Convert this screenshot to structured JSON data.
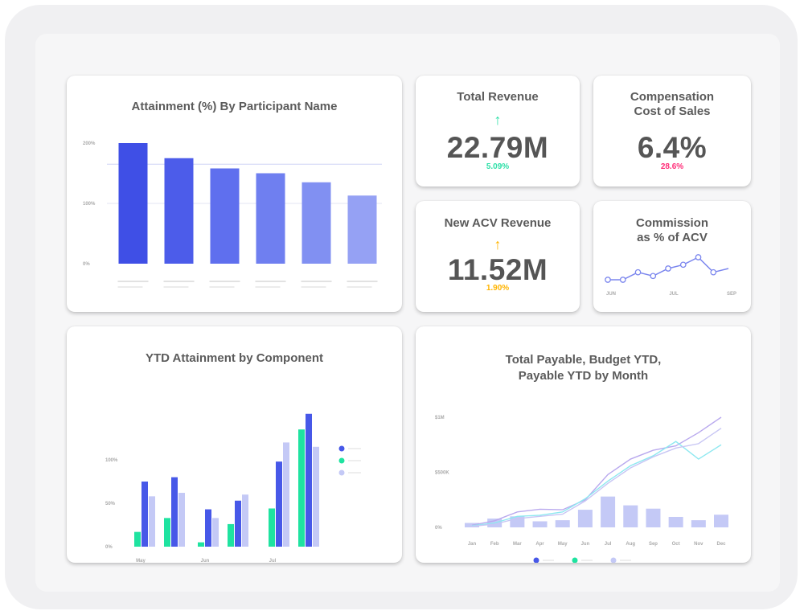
{
  "dashboard": {
    "attainment_card": {
      "title": "Attainment (%) By Participant Name"
    },
    "total_revenue": {
      "title": "Total Revenue",
      "value": "22.79M",
      "change": "5.09%",
      "trend": "up",
      "color": "#2ee0a8"
    },
    "comp_cost": {
      "title_line1": "Compensation",
      "title_line2": "Cost of Sales",
      "value": "6.4%",
      "change": "28.6%",
      "color": "#ff2d78"
    },
    "new_acv": {
      "title": "New ACV Revenue",
      "value": "11.52M",
      "change": "1.90%",
      "trend": "up",
      "color": "#ffb400"
    },
    "commission": {
      "title_line1": "Commission",
      "title_line2": "as % of ACV"
    },
    "ytd_card": {
      "title": "YTD Attainment by Component"
    },
    "payable_card": {
      "title_line1": "Total Payable, Budget YTD,",
      "title_line2": "Payable YTD by Month"
    }
  },
  "chart_data": [
    {
      "id": "attainment",
      "type": "bar",
      "title": "Attainment (%) By Participant Name",
      "yticks": [
        "0%",
        "100%",
        "200%"
      ],
      "ylim": [
        0,
        200
      ],
      "values": [
        200,
        175,
        158,
        150,
        135,
        113
      ],
      "colors": [
        "#3f4fe6",
        "#4c5cea",
        "#5f6fee",
        "#6f7ff0",
        "#8190f2",
        "#95a1f4"
      ],
      "reference_line": 165,
      "grid": true
    },
    {
      "id": "commission_sparkline",
      "type": "line",
      "title": "Commission as % of ACV",
      "xticks": [
        "JUN",
        "JUL",
        "SEP"
      ],
      "values": [
        1,
        1,
        3,
        2,
        4,
        5,
        7,
        3,
        4
      ],
      "color": "#7b86ee"
    },
    {
      "id": "ytd_component",
      "type": "bar",
      "title": "YTD Attainment by Component",
      "categories": [
        "May",
        "Jun",
        "Jul"
      ],
      "yticks": [
        "0%",
        "50%",
        "100%"
      ],
      "ylim": [
        0,
        150
      ],
      "series_colors": [
        "#1fe3a0",
        "#4758e8",
        "#c4c9f6"
      ],
      "groups": [
        [
          17,
          75,
          58
        ],
        [
          33,
          80,
          62
        ],
        [
          5,
          43,
          33
        ],
        [
          26,
          53,
          60
        ],
        [
          44,
          98,
          120
        ],
        [
          135,
          153,
          115
        ]
      ],
      "group_category": [
        0,
        0,
        1,
        1,
        2,
        2
      ],
      "legend_colors": [
        "#4758e8",
        "#1fe3a0",
        "#c4c9f6"
      ]
    },
    {
      "id": "payable_by_month",
      "type": "line",
      "title": "Total Payable, Budget YTD, Payable YTD by Month",
      "categories": [
        "Jan",
        "Feb",
        "Mar",
        "Apr",
        "May",
        "Jun",
        "Jul",
        "Aug",
        "Sep",
        "Oct",
        "Nov",
        "Dec"
      ],
      "yticks": [
        "0%",
        "$500K",
        "$1M"
      ],
      "ylim": [
        0,
        1000
      ],
      "bars": {
        "values": [
          40,
          80,
          100,
          55,
          65,
          160,
          280,
          200,
          170,
          95,
          65,
          115
        ],
        "color": "#c4c9f6"
      },
      "series": [
        {
          "values": [
            20,
            60,
            140,
            165,
            160,
            250,
            480,
            620,
            700,
            740,
            860,
            1000
          ],
          "color": "#b9a9ee"
        },
        {
          "values": [
            15,
            40,
            100,
            110,
            140,
            260,
            420,
            560,
            650,
            780,
            620,
            750
          ],
          "color": "#8ee8f0"
        },
        {
          "values": [
            10,
            30,
            80,
            100,
            120,
            240,
            400,
            540,
            640,
            720,
            760,
            900
          ],
          "color": "#c8c6f4"
        }
      ],
      "legend_colors": [
        "#4758e8",
        "#1fe3a0",
        "#c4c9f6"
      ]
    }
  ]
}
